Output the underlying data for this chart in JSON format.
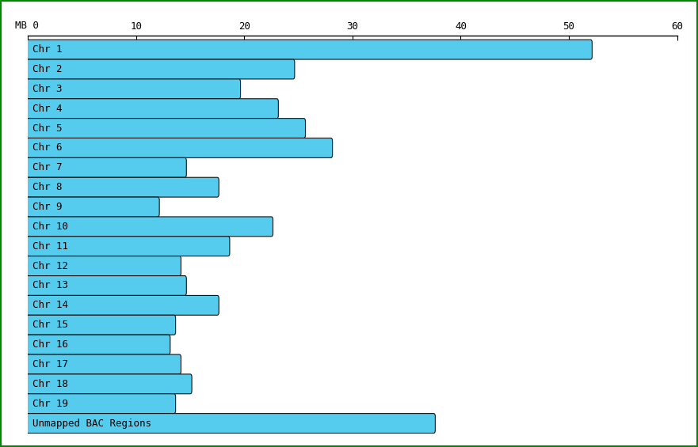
{
  "xlim": [
    0,
    60
  ],
  "xticks": [
    0,
    10,
    20,
    30,
    40,
    50,
    60
  ],
  "tick_labels": [
    "",
    "10",
    "20",
    "30",
    "40",
    "50",
    "60"
  ],
  "bar_color": "#55CCEE",
  "bar_edge_color": "#111111",
  "background_color": "#FFFFFF",
  "border_color": "#008800",
  "categories": [
    "Chr 1",
    "Chr 2",
    "Chr 3",
    "Chr 4",
    "Chr 5",
    "Chr 6",
    "Chr 7",
    "Chr 8",
    "Chr 9",
    "Chr 10",
    "Chr 11",
    "Chr 12",
    "Chr 13",
    "Chr 14",
    "Chr 15",
    "Chr 16",
    "Chr 17",
    "Chr 18",
    "Chr 19",
    "Unmapped BAC Regions"
  ],
  "values": [
    52.0,
    24.5,
    19.5,
    23.0,
    25.5,
    28.0,
    14.5,
    17.5,
    12.0,
    22.5,
    18.5,
    14.0,
    14.5,
    17.5,
    13.5,
    13.0,
    14.0,
    15.0,
    13.5,
    37.5
  ],
  "font_family": "monospace",
  "font_size": 9,
  "bar_height": 0.7
}
